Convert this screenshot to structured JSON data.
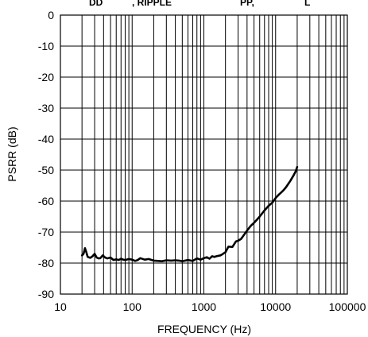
{
  "chart_data": {
    "type": "line",
    "title": "",
    "partial_top_text": [
      "DD",
      ", RIPPLE",
      "PP, ",
      "L"
    ],
    "xlabel": "FREQUENCY (Hz)",
    "ylabel": "PSRR (dB)",
    "x_scale": "log",
    "xlim": [
      10,
      100000
    ],
    "ylim": [
      -90,
      0
    ],
    "x_ticks": [
      10,
      100,
      1000,
      10000,
      100000
    ],
    "x_tick_labels": [
      "10",
      "100",
      "1000",
      "10000",
      "100000"
    ],
    "y_ticks": [
      0,
      -10,
      -20,
      -30,
      -40,
      -50,
      -60,
      -70,
      -80,
      -90
    ],
    "y_tick_labels": [
      "0",
      "-10",
      "-20",
      "-30",
      "-40",
      "-50",
      "-60",
      "-70",
      "-80",
      "-90"
    ],
    "grid": true,
    "series": [
      {
        "name": "",
        "color": "#000000",
        "x": [
          20,
          21,
          22,
          23,
          24,
          26,
          28,
          30,
          32,
          34,
          36,
          39,
          42,
          45,
          50,
          55,
          60,
          65,
          70,
          75,
          80,
          90,
          100,
          110,
          120,
          130,
          150,
          170,
          200,
          230,
          260,
          300,
          350,
          400,
          450,
          500,
          600,
          700,
          800,
          900,
          1000,
          1100,
          1200,
          1300,
          1400,
          1500,
          1700,
          1800,
          2000,
          2200,
          2500,
          2800,
          3000,
          3300,
          3600,
          4000,
          4500,
          5000,
          5500,
          6000,
          7000,
          8000,
          9000,
          10000,
          11000,
          12000,
          13000,
          14000,
          15000,
          16000,
          17000,
          18000,
          19000,
          20000
        ],
        "y": [
          -77.5,
          -77,
          -75.2,
          -76.5,
          -78,
          -78.3,
          -77.8,
          -77,
          -78.2,
          -78.5,
          -78.4,
          -77.5,
          -78.2,
          -78.5,
          -78.2,
          -79,
          -78.8,
          -79,
          -78.6,
          -78.9,
          -79,
          -78.7,
          -78.9,
          -79.3,
          -79,
          -78.4,
          -78.9,
          -78.7,
          -79.2,
          -79.3,
          -79.4,
          -79.1,
          -79.2,
          -79.1,
          -79.2,
          -79.4,
          -79,
          -79.3,
          -78.5,
          -78.9,
          -78.4,
          -78.1,
          -78.6,
          -77.8,
          -78,
          -77.8,
          -77.5,
          -77.2,
          -76.5,
          -74.7,
          -74.8,
          -73,
          -72.8,
          -72.2,
          -71,
          -69.5,
          -68,
          -67,
          -66,
          -65,
          -63,
          -61.5,
          -60.5,
          -59,
          -58,
          -57.2,
          -56.4,
          -55.5,
          -54.5,
          -53.5,
          -52.5,
          -51.5,
          -50.5,
          -49
        ]
      }
    ]
  }
}
